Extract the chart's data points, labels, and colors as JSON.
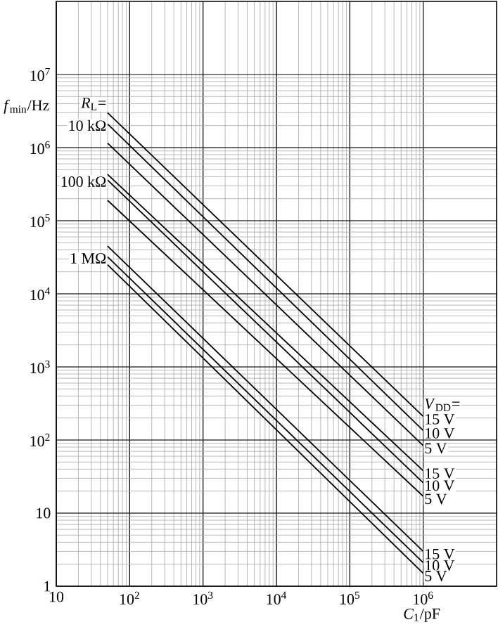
{
  "chart_data": {
    "type": "line",
    "xlabel": "*C*$_{1}$/pF",
    "ylabel": "*f*$_{min}$/Hz",
    "log": "xy",
    "grid": true,
    "xlim": [
      10,
      10000000
    ],
    "ylim": [
      1,
      100000000
    ],
    "xticks": [
      10,
      {
        "value": 100,
        "label": "10$^{2}$"
      },
      {
        "value": 1000,
        "label": "10$^{3}$"
      },
      {
        "value": 10000,
        "label": "10$^{4}$"
      },
      {
        "value": 100000,
        "label": "10$^{5}$"
      },
      {
        "value": 1000000,
        "label": "10$^{6}$"
      }
    ],
    "yticks": [
      1,
      10,
      {
        "value": 100,
        "label": "10$^{2}$"
      },
      {
        "value": 1000,
        "label": "10$^{3}$"
      },
      {
        "value": 10000,
        "label": "10$^{4}$"
      },
      {
        "value": 100000,
        "label": "10$^{5}$"
      },
      {
        "value": 1000000,
        "label": "10$^{6}$"
      },
      {
        "value": 10000000,
        "label": "10$^{7}$"
      }
    ],
    "x": [
      50,
      1000000
    ],
    "series": [
      {
        "color": "#000000",
        "values": [
          3000000,
          210
        ]
      },
      {
        "color": "#000000",
        "values": [
          2100000,
          135
        ]
      },
      {
        "color": "#000000",
        "values": [
          1150000,
          84
        ]
      },
      {
        "color": "#000000",
        "values": [
          430000,
          38
        ]
      },
      {
        "color": "#000000",
        "values": [
          360000,
          26
        ]
      },
      {
        "color": "#000000",
        "values": [
          190000,
          17
        ]
      },
      {
        "color": "#000000",
        "values": [
          45000,
          3
        ]
      },
      {
        "color": "#000000",
        "values": [
          32000,
          2.1
        ]
      },
      {
        "color": "#000000",
        "values": [
          25000,
          1.5
        ]
      }
    ],
    "annotations": [
      "*R*$_{L}$=",
      "10 kΩ",
      "100 kΩ",
      "1 MΩ",
      "*V*$_{DD}$=",
      "15 V",
      "10 V",
      "5 V",
      "15 V",
      "10 V",
      "5 V",
      "15 V",
      "10 V",
      "5 V"
    ]
  }
}
